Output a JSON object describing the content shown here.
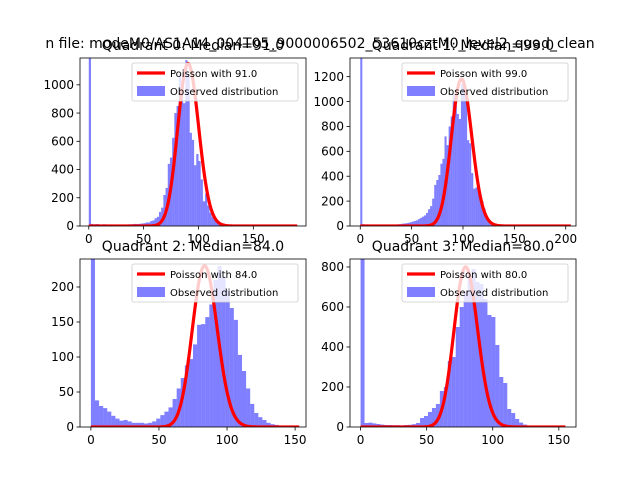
{
  "figure": {
    "suptitle": "n file: modeM0/AS1A14_004T05_9000006502_53610cztM0_level2_quad_clean"
  },
  "chart_data": [
    {
      "type": "bar",
      "title": "Quadrant 0: Median=91.0",
      "xlim": [
        -8,
        198
      ],
      "ylim": [
        0,
        1190
      ],
      "xticks": [
        0,
        50,
        100,
        150
      ],
      "yticks": [
        0,
        200,
        400,
        600,
        800,
        1000
      ],
      "hist_bins": {
        "x": [
          0,
          2,
          4,
          6,
          8,
          10,
          12,
          14,
          16,
          18,
          20,
          22,
          24,
          26,
          28,
          30,
          32,
          34,
          36,
          38,
          40,
          42,
          44,
          46,
          48,
          50,
          52,
          54,
          56,
          58,
          60,
          62,
          64,
          66,
          68,
          70,
          72,
          74,
          76,
          78,
          80,
          82,
          84,
          86,
          88,
          90,
          92,
          94,
          96,
          98,
          100,
          102,
          104,
          106,
          108,
          110,
          112,
          114,
          116,
          118,
          120,
          122,
          124,
          126,
          128,
          130
        ],
        "counts": [
          1190,
          15,
          12,
          14,
          13,
          10,
          12,
          12,
          10,
          11,
          9,
          9,
          10,
          10,
          10,
          9,
          10,
          10,
          12,
          12,
          14,
          15,
          14,
          16,
          18,
          20,
          25,
          25,
          35,
          40,
          55,
          65,
          100,
          130,
          220,
          270,
          440,
          485,
          625,
          800,
          850,
          1075,
          960,
          870,
          1175,
          1075,
          660,
          610,
          430,
          510,
          460,
          330,
          175,
          230,
          145,
          95,
          65,
          55,
          42,
          30,
          22,
          15,
          10,
          6,
          4,
          2
        ],
        "width": 2
      },
      "series": [
        {
          "name": "Poisson with 91.0",
          "mean": 91.0,
          "peak": 1150,
          "color": "#ff0000"
        },
        {
          "name": "Observed distribution",
          "color": "#0000ff"
        }
      ],
      "poisson_xrange": [
        0,
        190
      ],
      "legend": "upper-right"
    },
    {
      "type": "bar",
      "title": "Quadrant 1: Median=99.0",
      "xlim": [
        -10,
        210
      ],
      "ylim": [
        0,
        1350
      ],
      "xticks": [
        0,
        50,
        100,
        150,
        200
      ],
      "yticks": [
        0,
        200,
        400,
        600,
        800,
        1000,
        1200
      ],
      "hist_bins": {
        "x": [
          0,
          2,
          4,
          6,
          8,
          10,
          12,
          14,
          16,
          18,
          20,
          22,
          24,
          26,
          28,
          30,
          32,
          34,
          36,
          38,
          40,
          42,
          44,
          46,
          48,
          50,
          52,
          54,
          56,
          58,
          60,
          62,
          64,
          66,
          68,
          70,
          72,
          74,
          76,
          78,
          80,
          82,
          84,
          86,
          88,
          90,
          92,
          94,
          96,
          98,
          100,
          102,
          104,
          106,
          108,
          110,
          112,
          114,
          116,
          118,
          120,
          122,
          124,
          126,
          128,
          130,
          132,
          134,
          136,
          138,
          140
        ],
        "counts": [
          1350,
          15,
          12,
          13,
          12,
          11,
          10,
          11,
          10,
          10,
          9,
          9,
          10,
          10,
          10,
          10,
          11,
          12,
          13,
          15,
          18,
          20,
          22,
          25,
          30,
          35,
          40,
          45,
          55,
          65,
          75,
          85,
          105,
          135,
          160,
          220,
          330,
          370,
          410,
          500,
          540,
          720,
          650,
          800,
          880,
          1060,
          975,
          900,
          860,
          1140,
          1175,
          1030,
          690,
          665,
          425,
          300,
          310,
          340,
          260,
          200,
          140,
          80,
          40,
          30,
          20,
          15,
          10,
          8,
          5,
          3,
          2
        ],
        "width": 2
      },
      "series": [
        {
          "name": "Poisson with 99.0",
          "mean": 99.0,
          "peak": 1180,
          "color": "#ff0000"
        },
        {
          "name": "Observed distribution",
          "color": "#0000ff"
        }
      ],
      "poisson_xrange": [
        0,
        205
      ],
      "legend": "upper-right"
    },
    {
      "type": "bar",
      "title": "Quadrant 2: Median=84.0",
      "xlim": [
        -8,
        158
      ],
      "ylim": [
        0,
        240
      ],
      "xticks": [
        0,
        50,
        100,
        150
      ],
      "yticks": [
        0,
        50,
        100,
        150,
        200
      ],
      "hist_bins": {
        "x": [
          0,
          3,
          6,
          9,
          12,
          15,
          18,
          21,
          24,
          27,
          30,
          33,
          36,
          39,
          42,
          45,
          48,
          51,
          54,
          57,
          60,
          63,
          66,
          69,
          72,
          75,
          78,
          81,
          84,
          87,
          90,
          93,
          96,
          99,
          102,
          105,
          108,
          111,
          114,
          117,
          120,
          123,
          126,
          129,
          132,
          135,
          138,
          141,
          144,
          147,
          150
        ],
        "counts": [
          240,
          38,
          30,
          27,
          22,
          16,
          12,
          9,
          10,
          8,
          6,
          6,
          6,
          5,
          6,
          8,
          12,
          17,
          22,
          28,
          40,
          55,
          70,
          88,
          97,
          118,
          146,
          147,
          157,
          175,
          210,
          230,
          215,
          196,
          170,
          153,
          103,
          80,
          55,
          33,
          20,
          14,
          10,
          6,
          4,
          3,
          2,
          2,
          1,
          1,
          1
        ],
        "width": 3
      },
      "series": [
        {
          "name": "Poisson with 84.0",
          "mean": 84.0,
          "peak": 230,
          "color": "#ff0000"
        },
        {
          "name": "Observed distribution",
          "color": "#0000ff"
        }
      ],
      "poisson_xrange": [
        0,
        153
      ],
      "legend": "upper-right"
    },
    {
      "type": "bar",
      "title": "Quadrant 3: Median=80.0",
      "xlim": [
        -8,
        163
      ],
      "ylim": [
        0,
        840
      ],
      "xticks": [
        0,
        50,
        100,
        150
      ],
      "yticks": [
        0,
        200,
        400,
        600,
        800
      ],
      "hist_bins": {
        "x": [
          0,
          3,
          6,
          9,
          12,
          15,
          18,
          21,
          24,
          27,
          30,
          33,
          36,
          39,
          42,
          45,
          48,
          51,
          54,
          57,
          60,
          63,
          66,
          69,
          72,
          75,
          78,
          81,
          84,
          87,
          90,
          93,
          96,
          99,
          102,
          105,
          108,
          111,
          114,
          117,
          120,
          123,
          126,
          129,
          132,
          135,
          138,
          141,
          144,
          147,
          150,
          153
        ],
        "counts": [
          840,
          20,
          22,
          18,
          15,
          12,
          10,
          10,
          9,
          9,
          8,
          10,
          11,
          14,
          20,
          45,
          55,
          75,
          95,
          115,
          180,
          200,
          330,
          350,
          500,
          600,
          675,
          760,
          790,
          725,
          715,
          640,
          560,
          550,
          410,
          250,
          220,
          90,
          70,
          40,
          22,
          12,
          6,
          4,
          2,
          1,
          1,
          1,
          1,
          0,
          0,
          0
        ],
        "width": 3
      },
      "series": [
        {
          "name": "Poisson with 80.0",
          "mean": 80.0,
          "peak": 800,
          "color": "#ff0000"
        },
        {
          "name": "Observed distribution",
          "color": "#0000ff"
        }
      ],
      "poisson_xrange": [
        0,
        155
      ],
      "legend": "upper-right"
    }
  ]
}
